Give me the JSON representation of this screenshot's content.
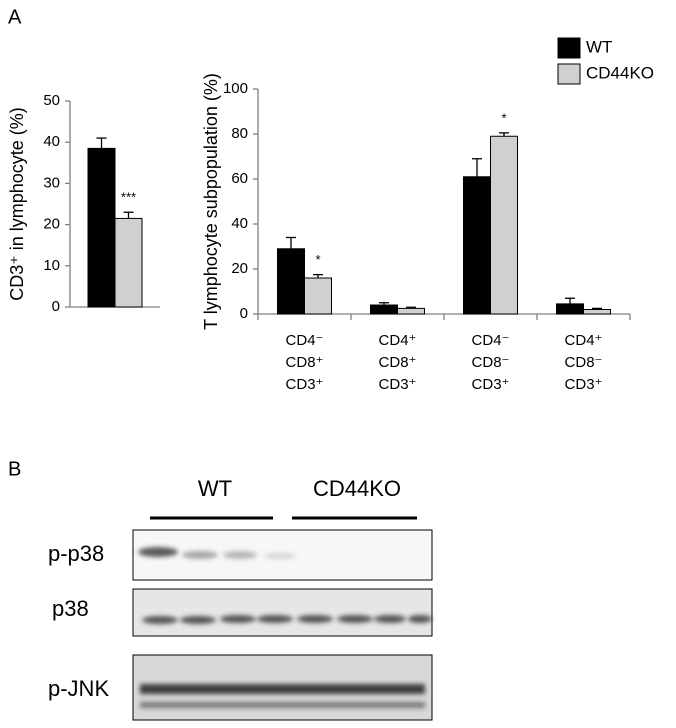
{
  "panel_a_label": "A",
  "chart_data": [
    {
      "type": "bar",
      "y_label": "CD3⁺ in lymphocyte (%)",
      "series": [
        {
          "color": "#000000",
          "values": [
            38.5
          ],
          "errors": [
            2.5
          ]
        },
        {
          "color": "#d0d0d0",
          "values": [
            21.5
          ],
          "errors": [
            1.5
          ]
        }
      ],
      "ylim": [
        0,
        50
      ],
      "yticks": [
        0,
        10,
        20,
        30,
        40,
        50
      ],
      "annotations": [
        "***"
      ]
    },
    {
      "type": "bar",
      "y_label": "T lymphocyte subpopulation (%)",
      "categories": [
        [
          "CD4⁻",
          "CD8⁺",
          "CD3⁺"
        ],
        [
          "CD4⁺",
          "CD8⁺",
          "CD3⁺"
        ],
        [
          "CD4⁻",
          "CD8⁻",
          "CD3⁺"
        ],
        [
          "CD4⁺",
          "CD8⁻",
          "CD3⁺"
        ]
      ],
      "series": [
        {
          "name": "WT",
          "color": "#000000",
          "values": [
            29,
            4,
            61,
            4.5
          ],
          "errors": [
            5,
            1,
            8,
            2.5
          ]
        },
        {
          "name": "CD44KO",
          "color": "#d0d0d0",
          "values": [
            16,
            2.5,
            79,
            2
          ],
          "errors": [
            1.5,
            0.5,
            1.5,
            0.5
          ]
        }
      ],
      "ylim": [
        0,
        100
      ],
      "yticks": [
        0,
        20,
        40,
        60,
        80,
        100
      ],
      "legend": "upper right",
      "annotations": [
        "*",
        "*"
      ]
    }
  ],
  "blot": {
    "label": "B",
    "groups": [
      "WT",
      "CD44KO"
    ],
    "rows": [
      "p-p38",
      "p38",
      "p-JNK"
    ]
  }
}
